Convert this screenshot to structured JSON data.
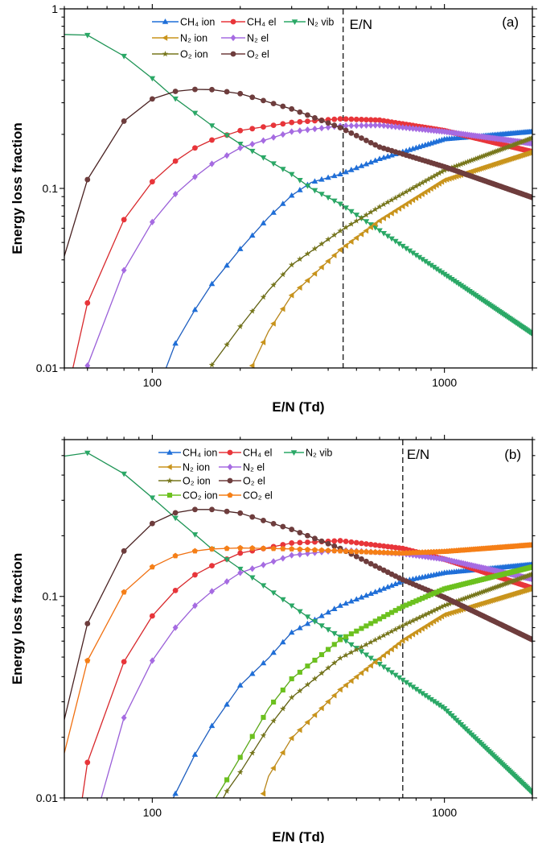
{
  "chart_data": [
    {
      "type": "line",
      "title": "(a)",
      "xlabel": "E/N (Td)",
      "ylabel": "Energy loss fraction",
      "xscale": "log",
      "yscale": "log",
      "xlim": [
        50,
        2000
      ],
      "ylim": [
        0.01,
        1
      ],
      "x_tick_labels": [
        {
          "value": 100,
          "label": "100"
        },
        {
          "value": 1000,
          "label": "1000"
        }
      ],
      "y_tick_labels": [
        {
          "value": 1,
          "label": "1"
        },
        {
          "value": 0.1,
          "label": "0.1"
        },
        {
          "value": 0.01,
          "label": "0.01"
        }
      ],
      "vline": {
        "x": 450,
        "label": "E/N",
        "style": "dashed"
      },
      "legend_placement": "top-center",
      "marker_start": 60,
      "marker_step": 20,
      "series": [
        {
          "name": "CH₄ ion",
          "color": "#1f6fd8",
          "line": "#1f5fc0",
          "marker": "triangle-up",
          "x": [
            111.5,
            120,
            140,
            160,
            200,
            250,
            300,
            350,
            440,
            600,
            1000,
            2000
          ],
          "y": [
            0.01,
            0.0137,
            0.0211,
            0.0294,
            0.046,
            0.069,
            0.0913,
            0.108,
            0.12,
            0.146,
            0.188,
            0.207
          ]
        },
        {
          "name": "CH₄ el",
          "color": "#e8353a",
          "line": "#d8282c",
          "marker": "circle",
          "x": [
            53.5,
            60,
            80,
            100,
            120,
            140,
            160,
            200,
            300,
            440,
            600,
            1000,
            2000
          ],
          "y": [
            0.01,
            0.023,
            0.067,
            0.109,
            0.142,
            0.168,
            0.186,
            0.21,
            0.233,
            0.244,
            0.24,
            0.21,
            0.16
          ]
        },
        {
          "name": "N₂ vib",
          "color": "#2aa866",
          "line": "#1e9455",
          "marker": "triangle-down",
          "x": [
            50,
            60,
            80,
            100,
            120,
            140,
            160,
            200,
            300,
            350,
            440,
            1000,
            2000
          ],
          "y": [
            0.72,
            0.714,
            0.546,
            0.41,
            0.316,
            0.263,
            0.224,
            0.177,
            0.12,
            0.1,
            0.082,
            0.0333,
            0.0155
          ]
        },
        {
          "name": "N₂ ion",
          "color": "#c9941c",
          "line": "#b8861a",
          "marker": "triangle-left",
          "x": [
            220,
            250,
            300,
            440,
            600,
            1000,
            2000
          ],
          "y": [
            0.0103,
            0.016,
            0.0254,
            0.0455,
            0.066,
            0.111,
            0.16
          ]
        },
        {
          "name": "N₂ el",
          "color": "#a66be2",
          "line": "#9a5fd8",
          "marker": "diamond",
          "x": [
            60,
            80,
            100,
            120,
            140,
            160,
            200,
            300,
            440,
            600,
            1000,
            2000
          ],
          "y": [
            0.0103,
            0.035,
            0.065,
            0.093,
            0.116,
            0.137,
            0.168,
            0.207,
            0.223,
            0.225,
            0.207,
            0.178
          ]
        },
        {
          "name": "O₂ ion",
          "color": "#77771c",
          "line": "#606010",
          "marker": "star",
          "x": [
            160,
            200,
            250,
            300,
            440,
            600,
            1000,
            2000
          ],
          "y": [
            0.0104,
            0.017,
            0.027,
            0.0375,
            0.058,
            0.079,
            0.126,
            0.191
          ]
        },
        {
          "name": "O₂ el",
          "color": "#6e3d3d",
          "line": "#4a2222",
          "marker": "circle",
          "x": [
            50,
            60,
            80,
            100,
            120,
            140,
            160,
            200,
            300,
            440,
            600,
            1000,
            2000
          ],
          "y": [
            0.042,
            0.112,
            0.237,
            0.315,
            0.347,
            0.356,
            0.355,
            0.337,
            0.277,
            0.218,
            0.17,
            0.132,
            0.089
          ]
        }
      ]
    },
    {
      "type": "line",
      "title": "(b)",
      "xlabel": "E/N (Td)",
      "ylabel": "Energy loss fraction",
      "xscale": "log",
      "yscale": "log",
      "xlim": [
        50,
        2000
      ],
      "ylim": [
        0.01,
        0.6
      ],
      "x_tick_labels": [
        {
          "value": 100,
          "label": "100"
        },
        {
          "value": 1000,
          "label": "1000"
        }
      ],
      "y_tick_labels": [
        {
          "value": 0.1,
          "label": "0.1"
        },
        {
          "value": 0.01,
          "label": "0.01"
        }
      ],
      "vline": {
        "x": 720,
        "label": "E/N",
        "style": "dashed"
      },
      "legend_placement": "top-center",
      "marker_start": 60,
      "marker_step": 20,
      "series": [
        {
          "name": "CH₄ ion",
          "color": "#1f6fd8",
          "line": "#1f5fc0",
          "marker": "triangle-up",
          "x": [
            118,
            120,
            140,
            160,
            200,
            250,
            300,
            440,
            720,
            1000,
            2000
          ],
          "y": [
            0.01,
            0.0105,
            0.0164,
            0.0228,
            0.0362,
            0.0494,
            0.0662,
            0.09,
            0.119,
            0.131,
            0.144
          ]
        },
        {
          "name": "CH₄ el",
          "color": "#e8353a",
          "line": "#d8282c",
          "marker": "circle",
          "x": [
            57.6,
            60,
            80,
            100,
            120,
            140,
            160,
            200,
            300,
            440,
            720,
            1000,
            2000
          ],
          "y": [
            0.01,
            0.015,
            0.0474,
            0.08,
            0.107,
            0.128,
            0.142,
            0.164,
            0.184,
            0.189,
            0.173,
            0.153,
            0.11
          ]
        },
        {
          "name": "N₂ vib",
          "color": "#2aa866",
          "line": "#1e9455",
          "marker": "triangle-down",
          "x": [
            50,
            60,
            80,
            100,
            120,
            140,
            160,
            200,
            300,
            350,
            440,
            720,
            1000,
            2000
          ],
          "y": [
            0.497,
            0.516,
            0.406,
            0.309,
            0.245,
            0.203,
            0.172,
            0.137,
            0.09,
            0.077,
            0.063,
            0.0385,
            0.0278,
            0.0106
          ]
        },
        {
          "name": "N₂ ion",
          "color": "#c9941c",
          "line": "#b8861a",
          "marker": "triangle-left",
          "x": [
            240,
            250,
            300,
            440,
            720,
            1000,
            2000
          ],
          "y": [
            0.0105,
            0.0128,
            0.0198,
            0.0345,
            0.0603,
            0.081,
            0.11
          ]
        },
        {
          "name": "N₂ el",
          "color": "#a66be2",
          "line": "#9a5fd8",
          "marker": "diamond",
          "x": [
            66.9,
            80,
            100,
            120,
            140,
            160,
            200,
            300,
            440,
            720,
            1000,
            2000
          ],
          "y": [
            0.01,
            0.025,
            0.048,
            0.07,
            0.09,
            0.106,
            0.131,
            0.16,
            0.17,
            0.163,
            0.153,
            0.122
          ]
        },
        {
          "name": "O₂ ion",
          "color": "#77771c",
          "line": "#606010",
          "marker": "star",
          "x": [
            175,
            180,
            200,
            250,
            300,
            440,
            720,
            1000,
            2000
          ],
          "y": [
            0.01,
            0.0108,
            0.0134,
            0.0224,
            0.0315,
            0.0494,
            0.0716,
            0.09,
            0.129
          ]
        },
        {
          "name": "O₂ el",
          "color": "#6e3d3d",
          "line": "#4a2222",
          "marker": "circle",
          "x": [
            50,
            60,
            80,
            100,
            120,
            140,
            160,
            200,
            300,
            440,
            720,
            1000,
            2000
          ],
          "y": [
            0.0245,
            0.0733,
            0.168,
            0.23,
            0.26,
            0.27,
            0.27,
            0.259,
            0.215,
            0.173,
            0.121,
            0.099,
            0.061
          ]
        },
        {
          "name": "CO₂ ion",
          "color": "#6cc11f",
          "line": "#5aa816",
          "marker": "square",
          "x": [
            165,
            180,
            200,
            250,
            300,
            440,
            720,
            1000,
            2000
          ],
          "y": [
            0.01,
            0.0123,
            0.0159,
            0.0278,
            0.039,
            0.061,
            0.089,
            0.109,
            0.14
          ]
        },
        {
          "name": "CO₂ el",
          "color": "#f57f17",
          "line": "#f07010",
          "marker": "pentagon",
          "x": [
            50,
            60,
            80,
            100,
            120,
            140,
            160,
            200,
            300,
            440,
            720,
            1000,
            2000
          ],
          "y": [
            0.0167,
            0.048,
            0.105,
            0.14,
            0.159,
            0.168,
            0.172,
            0.174,
            0.172,
            0.168,
            0.164,
            0.167,
            0.18
          ]
        }
      ]
    }
  ]
}
